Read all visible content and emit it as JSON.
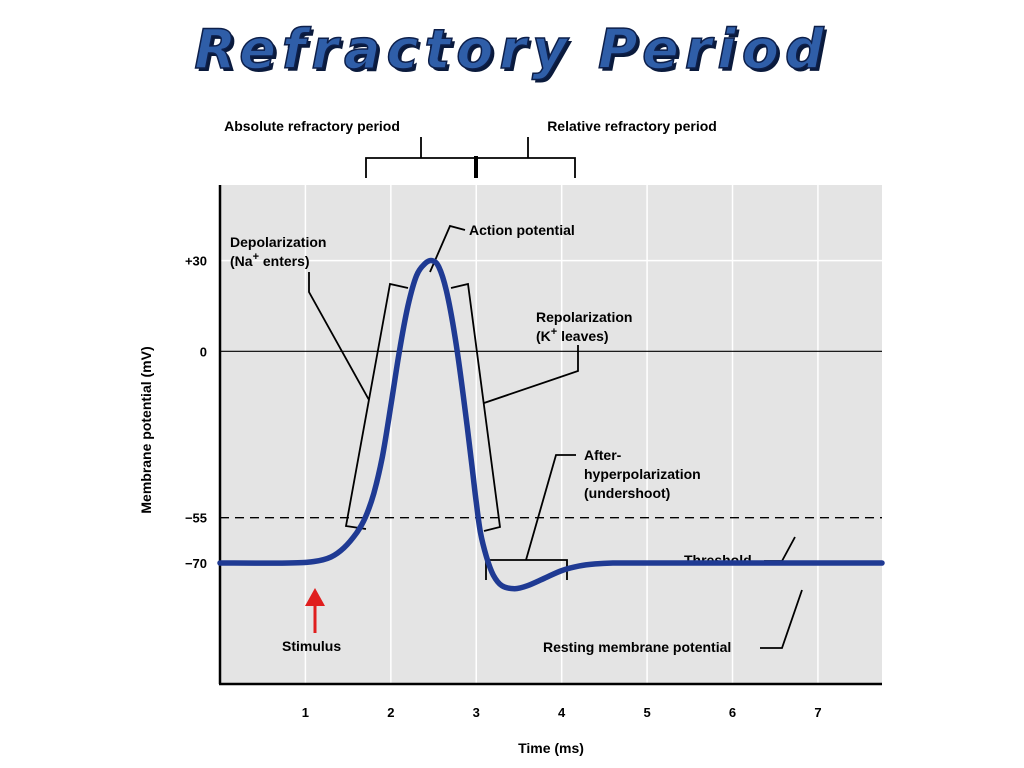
{
  "title": "Refractory Period",
  "chart_data": {
    "type": "line",
    "xlabel": "Time (ms)",
    "ylabel": "Membrane potential (mV)",
    "xlim": [
      0,
      7.75
    ],
    "ylim": [
      -110,
      55
    ],
    "xticks": [
      "1",
      "2",
      "3",
      "4",
      "5",
      "6",
      "7"
    ],
    "yticks": [
      {
        "label": "+30",
        "value": 30
      },
      {
        "label": "0",
        "value": 0
      },
      {
        "label": "−55",
        "value": -55
      },
      {
        "label": "−70",
        "value": -70
      }
    ],
    "grid": true,
    "series": [
      {
        "values_x": [
          0,
          0.8,
          1.1,
          1.3,
          1.45,
          1.6,
          1.7,
          1.8,
          1.9,
          2.0,
          2.1,
          2.2,
          2.3,
          2.4,
          2.48,
          2.56,
          2.65,
          2.75,
          2.85,
          2.95,
          3.0,
          3.05,
          3.12,
          3.2,
          3.3,
          3.45,
          3.6,
          3.8,
          4.0,
          4.2,
          4.4,
          4.6,
          5.0,
          6.0,
          7.0,
          7.75
        ],
        "values_y": [
          -70,
          -70,
          -69.5,
          -68,
          -65,
          -60,
          -55,
          -47,
          -35,
          -18,
          0,
          15,
          25,
          29,
          30,
          28,
          20,
          5,
          -15,
          -38,
          -50,
          -60,
          -68,
          -74,
          -77.5,
          -78.5,
          -77.5,
          -75,
          -72.5,
          -71,
          -70.3,
          -70,
          -70,
          -70,
          -70,
          -70
        ]
      }
    ],
    "reference_lines": [
      {
        "label": "Threshold",
        "value": -55,
        "style": "dashed"
      },
      {
        "label": "0",
        "value": 0,
        "style": "solid"
      }
    ],
    "annotations": {
      "absolute": "Absolute refractory period",
      "relative": "Relative refractory period",
      "action_potential": "Action potential",
      "depol_line1": "Depolarization",
      "depol_line2_a": "(Na",
      "depol_line2_sup": "+",
      "depol_line2_b": " enters)",
      "repol_line1": "Repolarization",
      "repol_line2_a": "(K",
      "repol_line2_sup": "+",
      "repol_line2_b": " leaves)",
      "ahp_line1": "After-",
      "ahp_line2": "hyperpolarization",
      "ahp_line3": "(undershoot)",
      "threshold": "Threshold",
      "stimulus": "Stimulus",
      "resting": "Resting membrane potential"
    },
    "colors": {
      "trace": "#1f3a93",
      "plot_bg": "#e4e4e4",
      "grid": "#ffffff",
      "stimulus_arrow": "#e01e1e"
    }
  }
}
